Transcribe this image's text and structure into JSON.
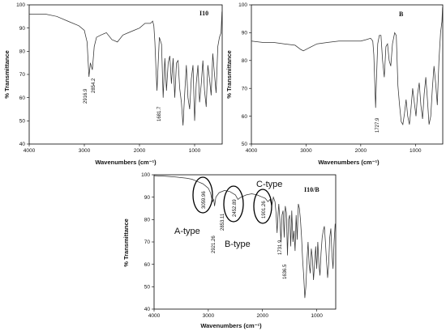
{
  "chart_data": [
    {
      "type": "line",
      "panel_label": "I10",
      "xlabel": "Wavenumbers (cm⁻¹)",
      "ylabel": "% Transmittance",
      "xlim": [
        4000,
        500
      ],
      "ylim": [
        40,
        100
      ],
      "x_reversed": true,
      "xticks": [
        "4000",
        "3000",
        "2000",
        "1000"
      ],
      "yticks": [
        "40",
        "50",
        "60",
        "70",
        "80",
        "90",
        "100"
      ],
      "series": [
        {
          "x": [
            4000,
            3700,
            3500,
            3300,
            3100,
            3000,
            2950,
            2916,
            2890,
            2854,
            2820,
            2780,
            2700,
            2600,
            2500,
            2400,
            2300,
            2200,
            2100,
            2000,
            1900,
            1800,
            1760,
            1740,
            1720,
            1700,
            1682,
            1660,
            1640,
            1600,
            1570,
            1540,
            1510,
            1480,
            1450,
            1420,
            1390,
            1360,
            1330,
            1300,
            1270,
            1240,
            1210,
            1180,
            1150,
            1120,
            1090,
            1060,
            1030,
            1000,
            970,
            940,
            910,
            880,
            850,
            820,
            790,
            760,
            730,
            700,
            670,
            640,
            610,
            580,
            550,
            520,
            505,
            500
          ],
          "y": [
            96,
            96,
            95,
            93,
            91,
            89,
            84,
            69,
            75,
            72,
            82,
            86,
            87,
            88,
            85,
            84,
            87,
            88,
            89,
            90,
            92,
            92,
            93,
            91,
            84,
            72,
            63,
            75,
            86,
            83,
            60,
            77,
            63,
            75,
            78,
            66,
            77,
            60,
            75,
            76,
            64,
            58,
            48,
            62,
            74,
            60,
            55,
            68,
            74,
            50,
            66,
            74,
            58,
            66,
            76,
            63,
            56,
            74,
            68,
            61,
            79,
            70,
            62,
            82,
            86,
            88,
            97,
            97
          ]
        }
      ],
      "annotations": [
        "2916.9",
        "2854.2",
        "1681.7"
      ]
    },
    {
      "type": "line",
      "panel_label": "B",
      "xlabel": "Wavenumbers (cm⁻¹)",
      "ylabel": "% Transmittance",
      "xlim": [
        4000,
        500
      ],
      "ylim": [
        50,
        100
      ],
      "x_reversed": true,
      "xticks": [
        "4000",
        "3000",
        "2000",
        "1000"
      ],
      "yticks": [
        "50",
        "60",
        "70",
        "80",
        "90",
        "100"
      ],
      "series": [
        {
          "x": [
            4000,
            3800,
            3600,
            3400,
            3200,
            3100,
            3050,
            2950,
            2800,
            2600,
            2400,
            2200,
            2000,
            1900,
            1820,
            1780,
            1760,
            1740,
            1728,
            1715,
            1690,
            1660,
            1630,
            1600,
            1570,
            1540,
            1510,
            1480,
            1450,
            1420,
            1380,
            1350,
            1320,
            1290,
            1260,
            1230,
            1200,
            1170,
            1140,
            1110,
            1080,
            1050,
            1020,
            990,
            960,
            930,
            900,
            870,
            840,
            810,
            780,
            750,
            720,
            690,
            660,
            630,
            600,
            570,
            540,
            515,
            505,
            500
          ],
          "y": [
            87,
            86.5,
            86.5,
            86,
            85.5,
            84,
            83.5,
            84.5,
            86,
            86.5,
            87,
            87,
            87,
            87.5,
            88,
            87,
            82,
            70,
            63,
            72,
            86,
            89,
            89,
            80,
            74,
            85,
            86,
            80,
            78,
            86,
            90,
            89,
            71,
            64,
            58,
            57,
            61,
            66,
            60,
            57,
            63,
            70,
            65,
            60,
            68,
            72,
            64,
            59,
            68,
            74,
            66,
            57,
            60,
            70,
            78,
            72,
            64,
            80,
            90,
            94,
            99,
            99
          ]
        }
      ],
      "annotations": [
        "1727.9"
      ]
    },
    {
      "type": "line",
      "panel_label": "I10/B",
      "xlabel": "Wavenumbers (cm⁻¹)",
      "ylabel": "% Transmittance",
      "xlim": [
        4000,
        650
      ],
      "ylim": [
        40,
        100
      ],
      "x_reversed": true,
      "xticks": [
        "4000",
        "3000",
        "2000",
        "1000"
      ],
      "yticks": [
        "40",
        "50",
        "60",
        "70",
        "80",
        "90",
        "100"
      ],
      "series": [
        {
          "x": [
            4000,
            3800,
            3600,
            3400,
            3300,
            3200,
            3100,
            3000,
            2960,
            2921,
            2900,
            2885,
            2860,
            2800,
            2700,
            2600,
            2500,
            2453,
            2400,
            2300,
            2200,
            2100,
            2000,
            1950,
            1901,
            1860,
            1830,
            1800,
            1770,
            1750,
            1732,
            1715,
            1700,
            1680,
            1660,
            1640,
            1620,
            1600,
            1580,
            1560,
            1540,
            1520,
            1500,
            1480,
            1460,
            1440,
            1420,
            1400,
            1380,
            1360,
            1340,
            1320,
            1300,
            1280,
            1260,
            1240,
            1220,
            1200,
            1180,
            1160,
            1140,
            1120,
            1100,
            1080,
            1060,
            1040,
            1020,
            1000,
            980,
            960,
            940,
            920,
            900,
            880,
            860,
            840,
            820,
            800,
            780,
            760,
            740,
            720,
            700,
            680,
            660,
            650
          ],
          "y": [
            99.6,
            99.4,
            99,
            98.5,
            98,
            97,
            96,
            94,
            92,
            88,
            89,
            86,
            90,
            92,
            93,
            92.5,
            91,
            89,
            90,
            91,
            91.5,
            91,
            90,
            89.5,
            88,
            89,
            86,
            90,
            88,
            83,
            74,
            82,
            87,
            80,
            70,
            82,
            84,
            72,
            86,
            83,
            64,
            80,
            82,
            68,
            84,
            70,
            75,
            66,
            82,
            71,
            87,
            85,
            80,
            72,
            62,
            55,
            45,
            50,
            62,
            70,
            60,
            56,
            67,
            63,
            53,
            60,
            68,
            58,
            70,
            60,
            55,
            65,
            72,
            75,
            77,
            70,
            62,
            54,
            60,
            72,
            76,
            65,
            58,
            70,
            78,
            78
          ]
        }
      ],
      "annotations": [
        "3059.96",
        "2921.26",
        "2853.11",
        "2452.89",
        "1901.26",
        "1731.9",
        "1636.5",
        "A-type",
        "B-type",
        "C-type"
      ]
    }
  ]
}
